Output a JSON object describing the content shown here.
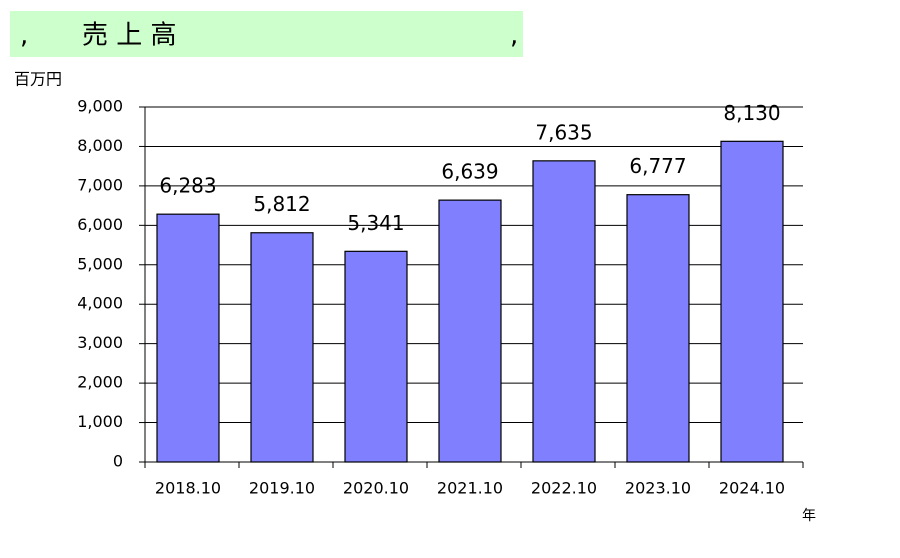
{
  "chart_data": {
    "type": "bar",
    "title_prefix": ",",
    "title": "売 上 高",
    "title_suffix": ",",
    "y_unit": "百万円",
    "x_unit": "年",
    "categories": [
      "2018.10",
      "2019.10",
      "2020.10",
      "2021.10",
      "2022.10",
      "2023.10",
      "2024.10"
    ],
    "values": [
      6283,
      5812,
      5341,
      6639,
      7635,
      6777,
      8130
    ],
    "value_labels": [
      "6,283",
      "5,812",
      "5,341",
      "6,639",
      "7,635",
      "6,777",
      "8,130"
    ],
    "color": "#8080ff",
    "ylim": [
      0,
      9000
    ],
    "yticks": [
      0,
      {
        "value": 1000,
        "label": "1,000"
      },
      {
        "value": 2000,
        "label": "2,000"
      },
      {
        "value": 3000,
        "label": "3,000"
      },
      {
        "value": 4000,
        "label": "4,000"
      },
      {
        "value": 5000,
        "label": "5,000"
      },
      {
        "value": 6000,
        "label": "6,000"
      },
      {
        "value": 7000,
        "label": "7,000"
      },
      {
        "value": 8000,
        "label": "8,000"
      },
      {
        "value": 9000,
        "label": "9,000"
      }
    ],
    "grid": true
  }
}
